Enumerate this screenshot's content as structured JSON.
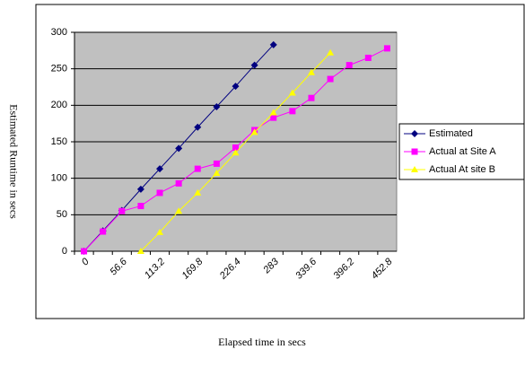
{
  "chart_data": {
    "type": "line",
    "xlabel": "Elapsed time in secs",
    "ylabel": "Estimated Runtime in  secs",
    "categories": [
      "0",
      null,
      "56.6",
      null,
      "113.2",
      null,
      "169.8",
      null,
      "226.4",
      null,
      "283",
      null,
      "339.6",
      null,
      "396.2",
      null,
      "452.8"
    ],
    "series": [
      {
        "name": "Estimated",
        "color": "#000080",
        "marker": "diamond",
        "values": [
          0,
          28,
          56,
          85,
          113,
          141,
          170,
          198,
          226,
          255,
          283,
          null,
          null,
          null,
          null,
          null,
          null
        ]
      },
      {
        "name": "Actual at Site A",
        "color": "#ff00ff",
        "marker": "square",
        "values": [
          0,
          27,
          55,
          62,
          80,
          93,
          113,
          120,
          142,
          166,
          183,
          192,
          210,
          236,
          255,
          265,
          278
        ]
      },
      {
        "name": "Actual At site B",
        "color": "#ffff00",
        "marker": "triangle",
        "values": [
          null,
          null,
          null,
          0,
          26,
          55,
          80,
          107,
          135,
          163,
          190,
          217,
          245,
          272,
          null,
          null,
          null
        ]
      }
    ],
    "ylim": [
      0,
      300
    ],
    "yticks": [
      0,
      50,
      100,
      150,
      200,
      250,
      300
    ],
    "grid": true,
    "legend": "right"
  }
}
